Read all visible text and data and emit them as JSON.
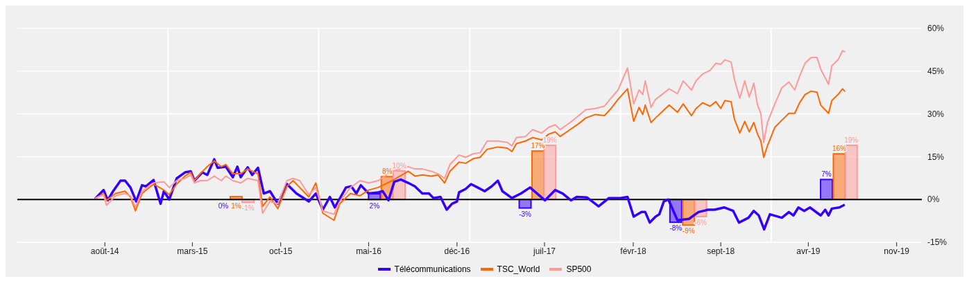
{
  "chart_data": {
    "type": "line",
    "x": [
      "2014-07-10",
      "2014-07-29",
      "2014-08-05",
      "2014-08-27",
      "2014-09-19",
      "2014-10-02",
      "2014-10-14",
      "2014-10-30",
      "2014-11-27",
      "2014-12-22",
      "2015-01-04",
      "2015-01-22",
      "2015-02-11",
      "2015-02-25",
      "2015-03-06",
      "2015-03-20",
      "2015-04-06",
      "2015-04-23",
      "2015-05-10",
      "2015-05-21",
      "2015-06-07",
      "2015-06-26",
      "2015-07-13",
      "2015-08-07",
      "2015-08-18",
      "2015-09-05",
      "2015-09-24",
      "2015-10-16",
      "2015-10-31",
      "2015-11-16",
      "2015-12-08",
      "2015-12-25",
      "2016-01-11",
      "2016-02-07",
      "2016-02-21",
      "2016-03-18",
      "2016-04-10",
      "2016-05-01",
      "2016-05-24",
      "2016-06-27",
      "2016-08-05",
      "2016-08-21",
      "2016-09-08",
      "2016-09-30",
      "2016-10-16",
      "2016-11-01",
      "2016-11-14",
      "2016-12-06",
      "2016-12-22",
      "2017-01-09",
      "2017-01-26",
      "2017-02-12",
      "2017-03-10",
      "2017-04-02",
      "2017-04-13",
      "2017-04-24",
      "2017-05-16",
      "2017-06-02",
      "2017-06-24",
      "2017-07-11",
      "2017-07-27",
      "2017-08-08",
      "2017-09-01",
      "2017-09-22",
      "2017-10-09",
      "2017-11-01",
      "2017-11-23",
      "2017-12-09",
      "2017-12-26",
      "2018-01-18",
      "2018-02-02",
      "2018-02-15",
      "2018-02-24",
      "2018-03-02",
      "2018-03-16",
      "2018-03-27",
      "2018-04-29",
      "2018-05-19",
      "2018-06-02",
      "2018-06-22",
      "2018-07-03",
      "2018-07-19",
      "2018-08-06",
      "2018-08-20",
      "2018-09-01",
      "2018-09-11",
      "2018-09-26",
      "2018-10-04",
      "2018-10-17",
      "2018-10-29",
      "2018-11-09",
      "2018-11-20",
      "2018-11-29",
      "2018-12-07",
      "2018-12-14",
      "2018-12-23",
      "2019-01-10",
      "2019-01-27",
      "2019-02-13",
      "2019-02-27",
      "2019-03-11",
      "2019-03-24",
      "2019-04-08",
      "2019-04-22",
      "2019-05-01",
      "2019-05-20",
      "2019-05-28",
      "2019-06-12",
      "2019-06-23",
      "2019-06-28"
    ],
    "series": [
      {
        "name": "Télécommunications",
        "color": "#3300ff",
        "x": [
          "2014-07-10",
          "2014-07-18",
          "2014-07-29",
          "2014-08-08",
          "2014-08-21",
          "2014-09-08",
          "2014-09-19",
          "2014-10-02",
          "2014-10-16",
          "2014-10-30",
          "2014-11-08",
          "2014-11-27",
          "2014-12-14",
          "2014-12-22",
          "2015-01-04",
          "2015-01-22",
          "2015-02-11",
          "2015-02-25",
          "2015-03-06",
          "2015-03-25",
          "2015-04-06",
          "2015-04-23",
          "2015-05-01",
          "2015-05-21",
          "2015-06-07",
          "2015-06-18",
          "2015-06-26",
          "2015-07-13",
          "2015-07-24",
          "2015-08-07",
          "2015-08-21",
          "2015-09-05",
          "2015-09-24",
          "2015-10-16",
          "2015-11-08",
          "2015-12-08",
          "2015-12-25",
          "2016-01-11",
          "2016-01-28",
          "2016-02-09",
          "2016-03-07",
          "2016-03-20",
          "2016-04-01",
          "2016-04-12",
          "2016-05-01",
          "2016-05-24",
          "2016-06-04",
          "2016-06-18",
          "2016-07-02",
          "2016-07-18",
          "2016-08-05",
          "2016-08-21",
          "2016-09-08",
          "2016-09-24",
          "2016-10-05",
          "2016-10-22",
          "2016-11-06",
          "2016-11-19",
          "2016-12-01",
          "2016-12-06",
          "2016-12-22",
          "2017-01-04",
          "2017-01-20",
          "2017-02-06",
          "2017-02-23",
          "2017-03-10",
          "2017-03-21",
          "2017-04-13",
          "2017-05-05",
          "2017-05-27",
          "2017-06-13",
          "2017-07-02",
          "2017-07-27",
          "2017-08-14",
          "2017-09-03",
          "2017-09-17",
          "2017-10-12",
          "2017-11-09",
          "2017-12-04",
          "2018-01-01",
          "2018-01-18",
          "2018-02-02",
          "2018-02-21",
          "2018-03-02",
          "2018-03-13",
          "2018-03-27",
          "2018-04-05",
          "2018-04-16",
          "2018-04-27",
          "2018-05-19",
          "2018-06-16",
          "2018-07-09",
          "2018-08-01",
          "2018-08-17",
          "2018-09-09",
          "2018-10-01",
          "2018-10-15",
          "2018-11-07",
          "2018-11-20",
          "2018-12-02",
          "2018-12-15",
          "2018-12-29",
          "2019-01-27",
          "2019-02-13",
          "2019-02-24",
          "2019-03-08",
          "2019-03-22",
          "2019-04-05",
          "2019-05-01",
          "2019-05-12",
          "2019-05-20",
          "2019-05-28",
          "2019-06-15",
          "2019-06-26"
        ],
        "values": [
          0.5,
          1.7,
          3.3,
          -0.3,
          2.9,
          6.6,
          6.6,
          4.2,
          -0.7,
          5.0,
          4.6,
          6.8,
          -1.5,
          2.9,
          0.0,
          7.4,
          9.5,
          9.9,
          6.6,
          9.5,
          8.6,
          14.1,
          11.1,
          11.5,
          7.8,
          11.5,
          7.8,
          11.3,
          8.6,
          11.1,
          2.1,
          2.9,
          -1.5,
          5.4,
          2.1,
          -0.7,
          2.1,
          -3.6,
          0.9,
          -2.8,
          4.2,
          4.6,
          2.1,
          5.0,
          2.1,
          2.5,
          2.9,
          -0.3,
          6.2,
          7.0,
          5.8,
          4.6,
          2.1,
          2.1,
          0.5,
          0.9,
          -3.6,
          -1.5,
          -0.7,
          2.5,
          3.7,
          5.4,
          4.2,
          2.9,
          4.6,
          6.6,
          2.9,
          0.5,
          2.1,
          4.2,
          2.1,
          -0.3,
          3.3,
          2.1,
          -0.3,
          0.9,
          0.7,
          -2.4,
          0.5,
          0.5,
          0.9,
          -6.0,
          -4.4,
          -4.4,
          -8.1,
          -6.0,
          -5.2,
          -0.7,
          0.0,
          -7.3,
          -6.8,
          -4.4,
          -3.6,
          -3.6,
          -2.8,
          -4.0,
          -8.1,
          -6.4,
          -4.0,
          -5.6,
          -10.5,
          -5.2,
          -6.4,
          -4.4,
          -5.6,
          -2.8,
          -4.0,
          -2.8,
          -5.6,
          -3.6,
          -5.6,
          -3.2,
          -2.8,
          -2.0
        ]
      },
      {
        "name": "TSC_World",
        "color": "#ff6600",
        "values": [
          0.5,
          2.1,
          -0.3,
          2.1,
          2.9,
          0.9,
          -4.0,
          2.1,
          5.4,
          3.3,
          1.7,
          5.4,
          8.2,
          9.5,
          6.6,
          9.0,
          11.5,
          13.5,
          11.5,
          12.3,
          9.0,
          9.0,
          10.7,
          9.0,
          -2.4,
          0.9,
          -3.2,
          4.6,
          6.6,
          4.2,
          0.9,
          5.8,
          -4.8,
          -7.3,
          -1.5,
          2.1,
          1.3,
          3.3,
          4.2,
          6.6,
          9.9,
          8.2,
          8.6,
          8.2,
          8.6,
          5.8,
          9.9,
          13.1,
          12.7,
          14.3,
          14.8,
          17.6,
          18.4,
          18.0,
          16.8,
          19.6,
          20.5,
          21.7,
          20.9,
          22.9,
          23.7,
          22.1,
          24.5,
          26.6,
          28.6,
          29.8,
          29.4,
          31.9,
          35.1,
          38.8,
          27.4,
          32.3,
          29.8,
          33.1,
          27.0,
          28.6,
          33.1,
          30.6,
          33.5,
          29.4,
          31.9,
          33.9,
          32.7,
          34.3,
          31.9,
          34.7,
          34.3,
          28.2,
          23.3,
          27.4,
          23.7,
          27.0,
          22.9,
          20.5,
          14.8,
          18.8,
          25.3,
          27.8,
          30.2,
          30.2,
          33.9,
          36.8,
          38.0,
          37.6,
          33.1,
          30.2,
          34.7,
          36.8,
          38.8,
          38.0
        ]
      },
      {
        "name": "SP500",
        "color": "#ff9999",
        "values": [
          0.5,
          1.7,
          -2.0,
          1.3,
          2.1,
          1.3,
          -2.8,
          2.9,
          5.8,
          6.2,
          4.2,
          6.6,
          7.4,
          8.6,
          5.8,
          6.6,
          6.6,
          8.2,
          6.6,
          8.2,
          6.6,
          5.8,
          7.4,
          6.6,
          -4.8,
          -0.7,
          -1.5,
          6.6,
          7.4,
          6.6,
          1.7,
          4.2,
          -4.0,
          -5.2,
          -0.7,
          4.2,
          6.6,
          5.8,
          6.6,
          9.9,
          11.5,
          10.7,
          10.7,
          9.9,
          9.0,
          7.4,
          12.3,
          15.6,
          14.8,
          16.0,
          16.4,
          20.5,
          20.5,
          20.0,
          18.8,
          21.7,
          22.1,
          24.5,
          23.3,
          25.3,
          26.2,
          24.5,
          27.0,
          29.4,
          31.5,
          31.9,
          32.7,
          35.5,
          38.4,
          46.1,
          33.5,
          38.4,
          36.8,
          41.6,
          32.3,
          35.1,
          38.8,
          37.1,
          41.6,
          38.4,
          41.6,
          44.0,
          45.3,
          47.8,
          47.4,
          49.0,
          48.2,
          42.1,
          35.5,
          41.6,
          35.9,
          40.8,
          33.1,
          30.2,
          20.0,
          27.0,
          33.5,
          39.2,
          41.2,
          38.4,
          43.3,
          47.8,
          49.8,
          49.8,
          45.7,
          40.4,
          46.9,
          49.0,
          52.2,
          51.8
        ]
      },
      {
        "type": "bar",
        "color": "#3300ff",
        "x": [
          "2015-05-15",
          "2016-05-15",
          "2017-05-15",
          "2018-05-15",
          "2019-05-15"
        ],
        "values": [
          0,
          2,
          -3,
          -8,
          7
        ],
        "value_labels": [
          "0%",
          "2%",
          "-3%",
          "-8%",
          "7%"
        ]
      },
      {
        "type": "bar",
        "color": "#ff6600",
        "x": [
          "2015-06-15",
          "2016-06-15",
          "2017-06-15",
          "2018-06-15",
          "2019-06-15"
        ],
        "values": [
          1,
          8,
          17,
          -9,
          16
        ],
        "value_labels": [
          "1%",
          "8%",
          "17%",
          "-9%",
          "16%"
        ]
      },
      {
        "type": "bar",
        "color": "#ff9999",
        "x": [
          "2015-07-14",
          "2016-07-14",
          "2017-07-14",
          "2018-07-14",
          "2019-07-14"
        ],
        "values": [
          -1,
          10,
          19,
          -6,
          19
        ],
        "value_labels": [
          "-1%",
          "10%",
          "19%",
          "-6%",
          "19%"
        ]
      }
    ],
    "xlim": [
      "2014-01-01",
      "2020-01-01"
    ],
    "xticks": [
      {
        "value": "2014-08-01",
        "label": "août-14"
      },
      {
        "value": "2015-03-01",
        "label": "mars-15"
      },
      {
        "value": "2015-10-01",
        "label": "oct-15"
      },
      {
        "value": "2016-05-01",
        "label": "mai-16"
      },
      {
        "value": "2016-12-01",
        "label": "déc-16"
      },
      {
        "value": "2017-07-01",
        "label": "juil-17"
      },
      {
        "value": "2018-02-01",
        "label": "févr-18"
      },
      {
        "value": "2018-09-01",
        "label": "sept-18"
      },
      {
        "value": "2019-04-01",
        "label": "avr-19"
      },
      {
        "value": "2019-11-01",
        "label": "nov-19"
      }
    ],
    "ylim": [
      -15,
      60
    ],
    "yticks": [
      {
        "value": -15,
        "label": "-15%"
      },
      {
        "value": 0,
        "label": "0%"
      },
      {
        "value": 15,
        "label": "15%"
      },
      {
        "value": 30,
        "label": "30%"
      },
      {
        "value": 45,
        "label": "45%"
      },
      {
        "value": 60,
        "label": "60%"
      }
    ],
    "grid": "y",
    "ref_lines": [
      {
        "axis": "x",
        "value": "2015-01-01",
        "color": "#ffffff"
      },
      {
        "axis": "x",
        "value": "2016-01-01",
        "color": "#ffffff"
      },
      {
        "axis": "x",
        "value": "2017-01-01",
        "color": "#ffffff"
      },
      {
        "axis": "x",
        "value": "2018-01-01",
        "color": "#ffffff"
      },
      {
        "axis": "x",
        "value": "2019-01-01",
        "color": "#ffffff"
      },
      {
        "axis": "y",
        "value": 0,
        "color": "#000000"
      }
    ],
    "legend": "bottom"
  }
}
